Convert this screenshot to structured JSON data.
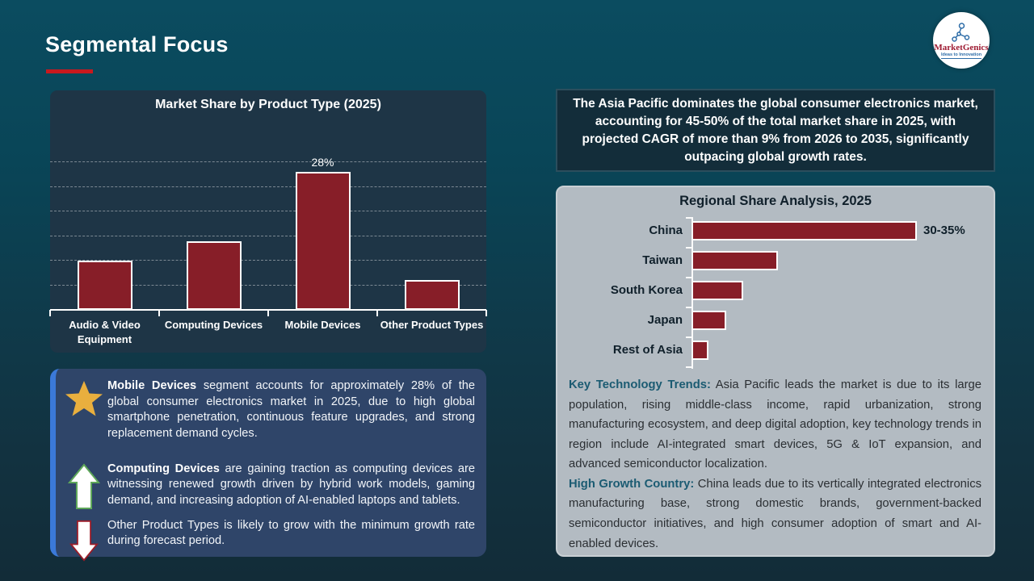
{
  "slide": {
    "title": "Segmental Focus"
  },
  "logo": {
    "name": "MarketGenics",
    "tagline": "Ideas to Innovation"
  },
  "colors": {
    "bar_fill": "#871E28",
    "bar_border": "#FFFFFF",
    "title_accent_red": "#C9191E",
    "insights_box_bg": "#2F4569",
    "insights_accent_blue": "#3B79D8",
    "regional_panel_gray": "#B3BBC2",
    "teal_lead_text": "#1B5B72",
    "star_gold": "#E9AF3E"
  },
  "highlight_box": {
    "text": "The Asia Pacific dominates the global consumer electronics market, accounting for 45-50% of the total market share in 2025, with projected CAGR of more than 9% from 2026 to 2035, significantly outpacing global growth rates."
  },
  "insights_box": {
    "items": [
      {
        "icon": "star",
        "lead": "Mobile Devices",
        "text": " segment accounts for approximately 28% of the global consumer electronics market in 2025, due to high global smartphone penetration, continuous feature upgrades, and strong replacement demand cycles."
      },
      {
        "icon": "arrow-up",
        "lead": "Computing Devices",
        "text": " are gaining traction as computing devices are witnessing renewed growth driven by hybrid work models, gaming demand, and increasing adoption of AI-enabled laptops and tablets."
      },
      {
        "icon": "arrow-down",
        "lead": "",
        "text": "Other Product Types is likely to grow with the minimum growth rate during forecast period."
      }
    ]
  },
  "regional_panel": {
    "paragraphs": [
      {
        "lead": "Key Technology Trends:",
        "text": " Asia Pacific leads the market is due to its large population, rising middle-class income, rapid urbanization, strong manufacturing ecosystem, and deep digital adoption, key technology trends in region include AI-integrated smart devices, 5G & IoT expansion, and advanced semiconductor localization."
      },
      {
        "lead": "High Growth Country:",
        "text": " China leads due to its vertically integrated electronics manufacturing base, strong domestic brands, government-backed semiconductor initiatives, and high consumer adoption of smart and AI-enabled devices."
      }
    ]
  },
  "chart_data": [
    {
      "id": "market-share-by-product-type",
      "type": "bar",
      "orientation": "vertical",
      "title": "Market Share by Product Type (2025)",
      "categories": [
        "Audio & Video Equipment",
        "Computing Devices",
        "Mobile Devices",
        "Other Product Types"
      ],
      "values": [
        10,
        14,
        28,
        6
      ],
      "unit": "%",
      "data_labels": [
        "",
        "",
        "28%",
        ""
      ],
      "ylim": [
        0,
        30
      ],
      "gridlines": [
        5,
        10,
        15,
        20,
        25,
        30
      ],
      "grid_style": "dashed",
      "bar_color": "#871E28",
      "bar_border_color": "#FFFFFF",
      "legend": "none"
    },
    {
      "id": "regional-share-analysis",
      "type": "bar",
      "orientation": "horizontal",
      "title": "Regional Share Analysis, 2025",
      "categories": [
        "China",
        "Taiwan",
        "South Korea",
        "Japan",
        "Rest of Asia"
      ],
      "values": [
        32.5,
        12.5,
        7.5,
        5,
        2.5
      ],
      "unit": "%",
      "data_labels": [
        "30-35%",
        "",
        "",
        "",
        ""
      ],
      "xlim": [
        0,
        35
      ],
      "grid_style": "none",
      "bar_color": "#871E28",
      "bar_border_color": "#FFFFFF",
      "legend": "none"
    }
  ]
}
